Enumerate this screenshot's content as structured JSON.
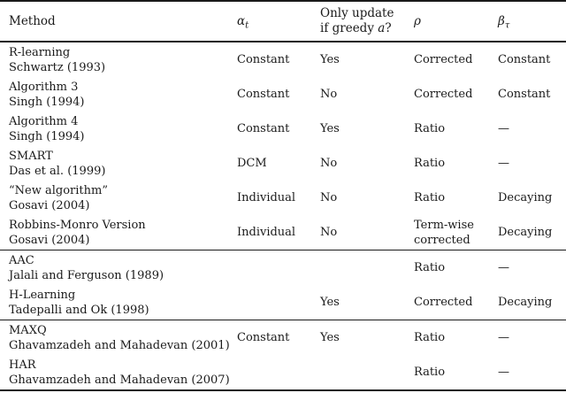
{
  "colors": {
    "background": "#ffffff",
    "text": "#1a1a1a",
    "rule": "#1a1a1a"
  },
  "table": {
    "header": {
      "method": "Method",
      "alpha_symbol": "α",
      "alpha_subscript": "t",
      "greedy_line1": "Only update",
      "greedy_line2_prefix": "if greedy ",
      "greedy_variable": "a",
      "greedy_suffix": "?",
      "rho_symbol": "ρ",
      "beta_symbol": "β",
      "beta_subscript": "τ"
    },
    "rows": [
      {
        "method": "R-learning",
        "citation": "Schwartz (1993)",
        "alpha": "Constant",
        "greedy_update": "Yes",
        "rho": "Corrected",
        "beta": "Constant",
        "group_end": false
      },
      {
        "method": "Algorithm 3",
        "citation": "Singh (1994)",
        "alpha": "Constant",
        "greedy_update": "No",
        "rho": "Corrected",
        "beta": "Constant",
        "group_end": false
      },
      {
        "method": "Algorithm 4",
        "citation": "Singh (1994)",
        "alpha": "Constant",
        "greedy_update": "Yes",
        "rho": "Ratio",
        "beta": "—",
        "group_end": false
      },
      {
        "method": "SMART",
        "citation": "Das et al. (1999)",
        "alpha": "DCM",
        "greedy_update": "No",
        "rho": "Ratio",
        "beta": "—",
        "group_end": false
      },
      {
        "method": "“New algorithm”",
        "citation": "Gosavi (2004)",
        "alpha": "Individual",
        "greedy_update": "No",
        "rho": "Ratio",
        "beta": "Decaying",
        "group_end": false
      },
      {
        "method": "Robbins-Monro Version",
        "citation": "Gosavi (2004)",
        "alpha": "Individual",
        "greedy_update": "No",
        "rho": "Term-wise corrected",
        "beta": "Decaying",
        "group_end": true
      },
      {
        "method": "AAC",
        "citation": "Jalali and Ferguson (1989)",
        "alpha": "",
        "greedy_update": "",
        "rho": "Ratio",
        "beta": "—",
        "group_end": false
      },
      {
        "method": "H-Learning",
        "citation": "Tadepalli and Ok (1998)",
        "alpha": "",
        "greedy_update": "Yes",
        "rho": "Corrected",
        "beta": "Decaying",
        "group_end": true
      },
      {
        "method": "MAXQ",
        "citation": "Ghavamzadeh and Mahadevan (2001)",
        "alpha": "Constant",
        "greedy_update": "Yes",
        "rho": "Ratio",
        "beta": "—",
        "group_end": false
      },
      {
        "method": "HAR",
        "citation": "Ghavamzadeh and Mahadevan (2007)",
        "alpha": "",
        "greedy_update": "",
        "rho": "Ratio",
        "beta": "—",
        "group_end": false
      }
    ]
  }
}
